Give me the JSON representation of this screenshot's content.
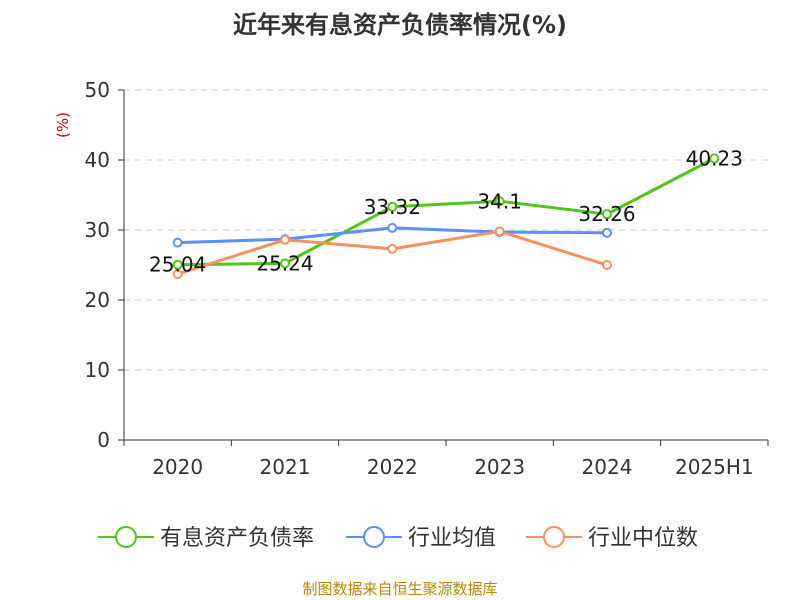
{
  "chart_data": {
    "type": "line",
    "title": "近年来有息资产负债率情况(%)",
    "ylabel": "(%)",
    "xlabel": "",
    "categories": [
      "2020",
      "2021",
      "2022",
      "2023",
      "2024",
      "2025H1"
    ],
    "ylim": [
      0,
      50
    ],
    "yticks": [
      0,
      10,
      20,
      30,
      40,
      50
    ],
    "grid": "horizontal dashed",
    "legend_position": "bottom",
    "series": [
      {
        "name": "有息资产负债率",
        "color": "#52c41a",
        "values": [
          25.04,
          25.24,
          33.32,
          34.1,
          32.26,
          40.23
        ],
        "labels": [
          "25.04",
          "25.24",
          "33.32",
          "34.1",
          "32.26",
          "40.23"
        ]
      },
      {
        "name": "行业均值",
        "color": "#5b8ff9",
        "values": [
          28.2,
          28.7,
          30.3,
          29.7,
          29.6,
          null
        ]
      },
      {
        "name": "行业中位数",
        "color": "#f6905e",
        "values": [
          23.7,
          28.6,
          27.3,
          29.8,
          25.0,
          null
        ]
      }
    ]
  },
  "footer": {
    "source": "制图数据来自恒生聚源数据库"
  }
}
